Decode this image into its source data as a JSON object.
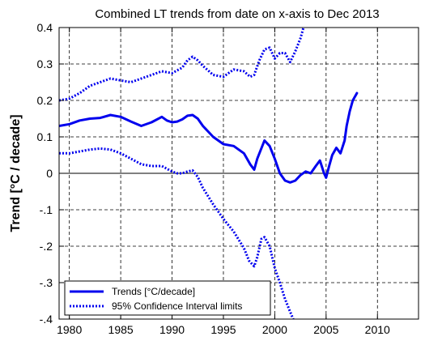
{
  "chart_data": {
    "type": "line",
    "title": "Combined LT trends from date on x-axis to Dec 2013",
    "xlabel": "",
    "ylabel": "Trend  [°C / decade]",
    "xlim": [
      1979,
      2014
    ],
    "ylim": [
      -0.4,
      0.4
    ],
    "x_ticks": [
      1980,
      1985,
      1990,
      1995,
      2000,
      2005,
      2010
    ],
    "y_ticks": [
      -0.4,
      -0.3,
      -0.2,
      -0.1,
      0,
      0.1,
      0.2,
      0.3,
      0.4
    ],
    "grid": true,
    "legend_position": "bottom-left",
    "series": [
      {
        "name": "Trends [°C/decade]",
        "style": "solid",
        "color": "#0000ee",
        "x": [
          1979.0,
          1980.0,
          1981.0,
          1982.0,
          1983.0,
          1984.0,
          1985.0,
          1986.0,
          1987.0,
          1988.0,
          1989.0,
          1989.5,
          1990.0,
          1990.5,
          1991.0,
          1991.5,
          1992.0,
          1992.5,
          1993.0,
          1994.0,
          1995.0,
          1996.0,
          1997.0,
          1997.6,
          1998.0,
          1998.3,
          1999.0,
          1999.5,
          2000.0,
          2000.5,
          2001.0,
          2001.5,
          2002.0,
          2002.5,
          2003.0,
          2003.5,
          2004.0,
          2004.4,
          2004.8,
          2005.0,
          2005.3,
          2005.6,
          2006.0,
          2006.4,
          2006.8,
          2007.0,
          2007.3,
          2007.6,
          2008.0
        ],
        "y": [
          0.13,
          0.135,
          0.145,
          0.15,
          0.152,
          0.16,
          0.155,
          0.142,
          0.13,
          0.14,
          0.155,
          0.145,
          0.14,
          0.142,
          0.148,
          0.158,
          0.16,
          0.15,
          0.13,
          0.1,
          0.08,
          0.075,
          0.055,
          0.025,
          0.01,
          0.04,
          0.09,
          0.075,
          0.04,
          0.0,
          -0.02,
          -0.025,
          -0.02,
          -0.005,
          0.005,
          0.0,
          0.02,
          0.035,
          0.0,
          -0.012,
          0.02,
          0.05,
          0.07,
          0.055,
          0.09,
          0.13,
          0.17,
          0.2,
          0.22
        ]
      },
      {
        "name": "95% Confidence Interval limits",
        "style": "dotted",
        "color": "#0000ee",
        "x": [
          1979.0,
          1980.0,
          1981.0,
          1982.0,
          1983.0,
          1984.0,
          1985.0,
          1986.0,
          1987.0,
          1988.0,
          1989.0,
          1990.0,
          1991.0,
          1991.5,
          1992.0,
          1992.5,
          1993.0,
          1994.0,
          1995.0,
          1996.0,
          1997.0,
          1997.6,
          1998.0,
          1998.5,
          1999.0,
          1999.5,
          2000.0,
          2000.5,
          2001.0,
          2001.5,
          2002.0,
          2002.5,
          2002.8
        ],
        "y": [
          0.2,
          0.205,
          0.22,
          0.24,
          0.25,
          0.26,
          0.255,
          0.25,
          0.26,
          0.27,
          0.28,
          0.275,
          0.29,
          0.31,
          0.32,
          0.31,
          0.295,
          0.27,
          0.265,
          0.285,
          0.28,
          0.265,
          0.27,
          0.31,
          0.34,
          0.345,
          0.315,
          0.33,
          0.33,
          0.305,
          0.335,
          0.37,
          0.4
        ]
      },
      {
        "name": "",
        "style": "dotted",
        "color": "#0000ee",
        "x": [
          1979.0,
          1980.0,
          1981.0,
          1982.0,
          1983.0,
          1984.0,
          1985.0,
          1986.0,
          1987.0,
          1988.0,
          1989.0,
          1990.0,
          1990.5,
          1991.0,
          1991.5,
          1992.0,
          1992.5,
          1993.0,
          1994.0,
          1995.0,
          1996.0,
          1997.0,
          1997.5,
          1998.0,
          1998.3,
          1998.7,
          1999.0,
          1999.5,
          2000.0,
          2000.5,
          2001.0,
          2001.5,
          2001.8
        ],
        "y": [
          0.055,
          0.055,
          0.06,
          0.065,
          0.068,
          0.065,
          0.055,
          0.04,
          0.025,
          0.02,
          0.02,
          0.005,
          0.0,
          0.0,
          0.005,
          0.008,
          -0.01,
          -0.04,
          -0.085,
          -0.125,
          -0.16,
          -0.205,
          -0.24,
          -0.255,
          -0.23,
          -0.18,
          -0.175,
          -0.2,
          -0.26,
          -0.3,
          -0.345,
          -0.38,
          -0.4
        ]
      }
    ]
  }
}
